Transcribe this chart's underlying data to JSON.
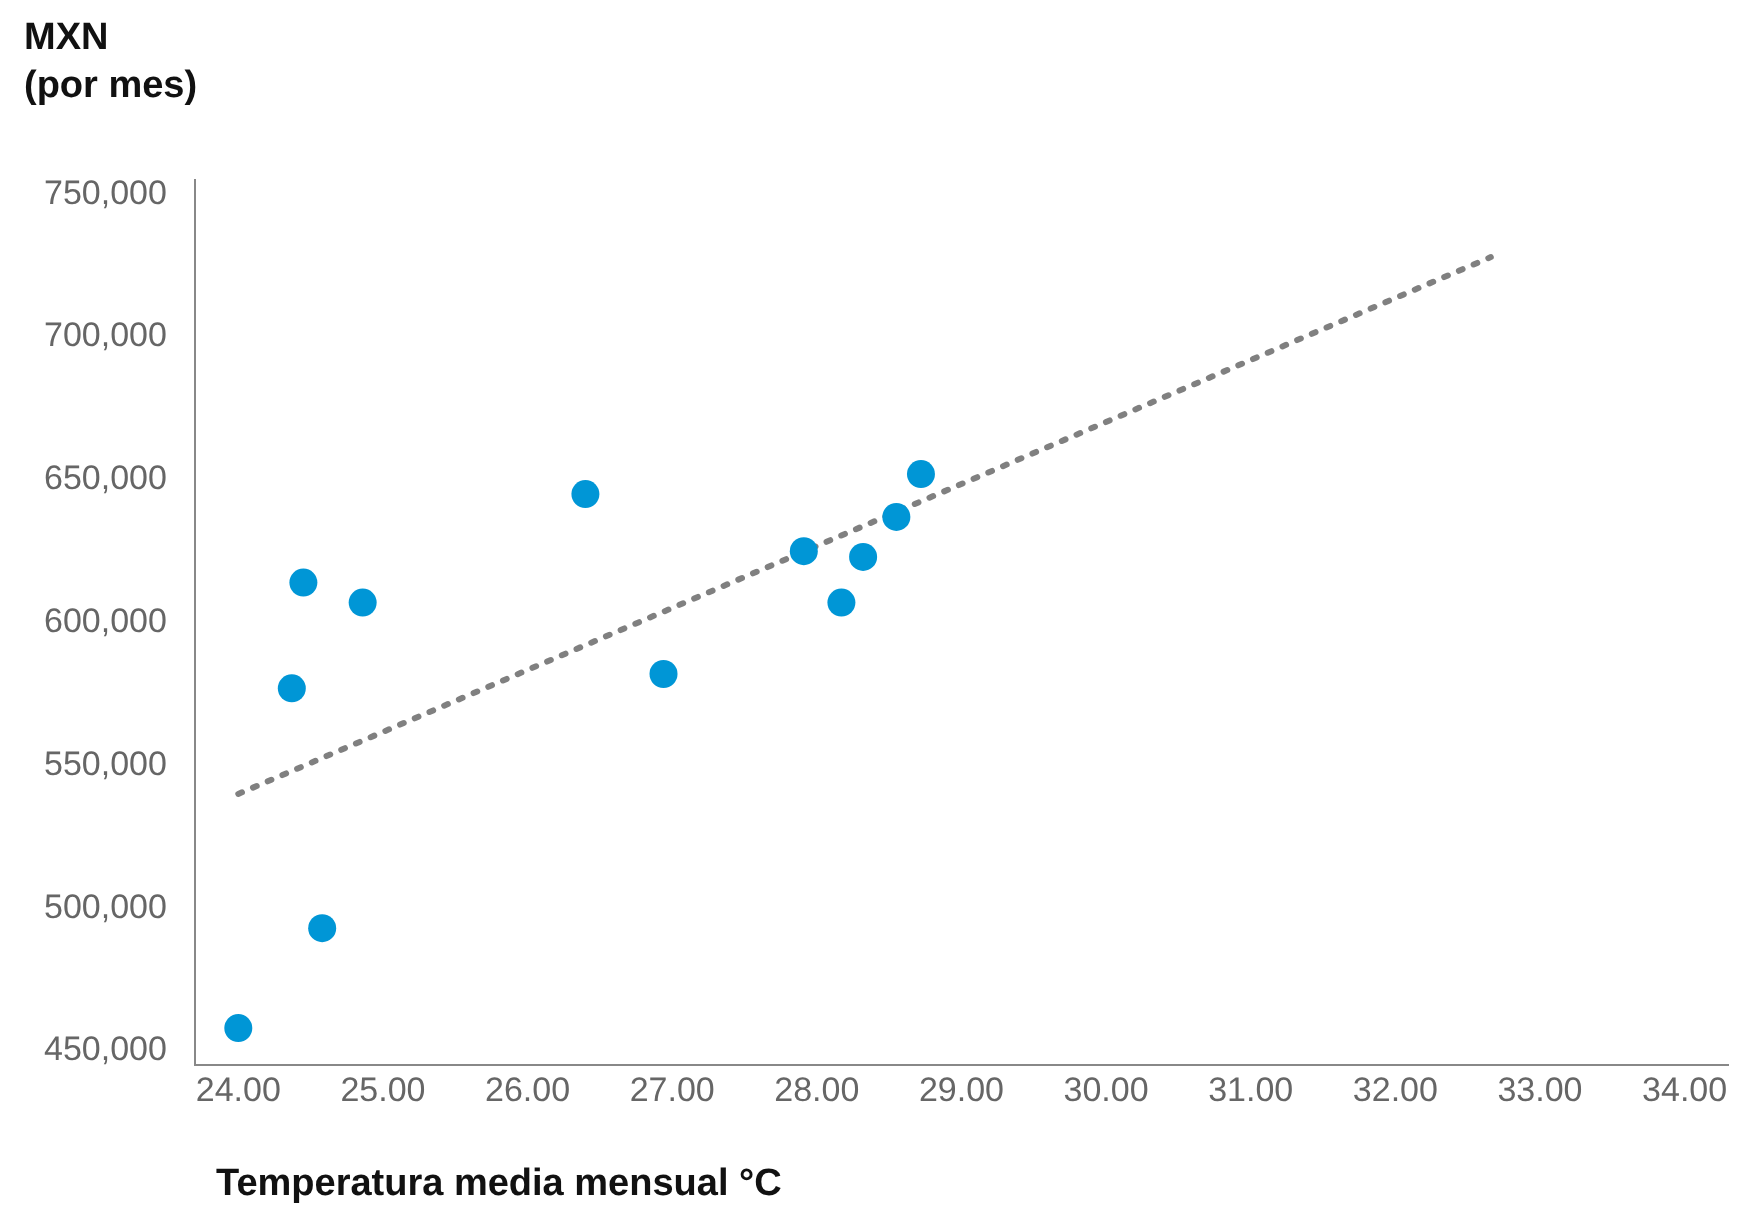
{
  "chart_data": {
    "type": "scatter",
    "xlabel": "Temperatura media mensual °C",
    "ylabel": "MXN\n(por mes)",
    "xlim": [
      23.7,
      34.3
    ],
    "ylim": [
      445000,
      755000
    ],
    "xticks": [
      {
        "value": 24,
        "label": "24.00"
      },
      {
        "value": 25,
        "label": "25.00"
      },
      {
        "value": 26,
        "label": "26.00"
      },
      {
        "value": 27,
        "label": "27.00"
      },
      {
        "value": 28,
        "label": "28.00"
      },
      {
        "value": 29,
        "label": "29.00"
      },
      {
        "value": 30,
        "label": "30.00"
      },
      {
        "value": 31,
        "label": "31.00"
      },
      {
        "value": 32,
        "label": "32.00"
      },
      {
        "value": 33,
        "label": "33.00"
      },
      {
        "value": 34,
        "label": "34.00"
      }
    ],
    "yticks": [
      {
        "value": 450000,
        "label": "450,000"
      },
      {
        "value": 500000,
        "label": "500,000"
      },
      {
        "value": 550000,
        "label": "550,000"
      },
      {
        "value": 600000,
        "label": "600,000"
      },
      {
        "value": 650000,
        "label": "650,000"
      },
      {
        "value": 700000,
        "label": "700,000"
      },
      {
        "value": 750000,
        "label": "750,000"
      }
    ],
    "grid": false,
    "legend": false,
    "marker": "circle",
    "series": [
      {
        "type": "scatter",
        "color": "#0096d6",
        "x": [
          24.0,
          24.37,
          24.45,
          24.58,
          24.86,
          26.4,
          26.94,
          27.91,
          28.17,
          28.32,
          28.55,
          28.72
        ],
        "values": [
          458000,
          577000,
          614000,
          493000,
          607000,
          645000,
          582000,
          625000,
          607000,
          623000,
          637000,
          652000
        ]
      },
      {
        "type": "line",
        "color": "#808080",
        "line_style": "dotted",
        "marker": "none",
        "x": [
          24.0,
          32.66
        ],
        "values": [
          540000,
          728000
        ]
      }
    ]
  }
}
